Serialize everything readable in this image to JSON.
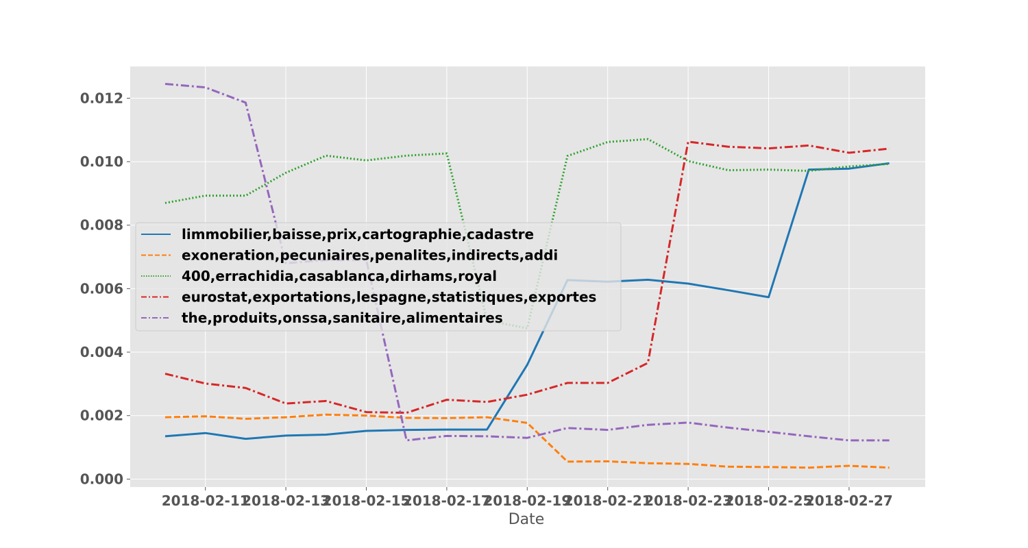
{
  "chart_data": {
    "type": "line",
    "title": "",
    "xlabel": "Date",
    "ylabel": "",
    "x": [
      "2018-02-10",
      "2018-02-11",
      "2018-02-12",
      "2018-02-13",
      "2018-02-14",
      "2018-02-15",
      "2018-02-16",
      "2018-02-17",
      "2018-02-18",
      "2018-02-19",
      "2018-02-20",
      "2018-02-21",
      "2018-02-22",
      "2018-02-23",
      "2018-02-24",
      "2018-02-25",
      "2018-02-26",
      "2018-02-27",
      "2018-02-28"
    ],
    "x_tick_labels": [
      "2018-02-11",
      "2018-02-13",
      "2018-02-15",
      "2018-02-17",
      "2018-02-19",
      "2018-02-21",
      "2018-02-23",
      "2018-02-25",
      "2018-02-27"
    ],
    "y_tick_labels": [
      "0.000",
      "0.002",
      "0.004",
      "0.006",
      "0.008",
      "0.010",
      "0.012"
    ],
    "ylim": [
      -0.00025,
      0.013
    ],
    "grid": true,
    "legend_position": "center-left",
    "series": [
      {
        "name": "limmobilier,baisse,prix,cartographie,cadastre",
        "color": "#1f77b4",
        "dash": "solid",
        "values": [
          0.00135,
          0.00145,
          0.00127,
          0.00137,
          0.0014,
          0.00152,
          0.00155,
          0.00156,
          0.00156,
          0.0036,
          0.00627,
          0.00622,
          0.00628,
          0.00616,
          0.00595,
          0.00573,
          0.00975,
          0.00978,
          0.00995
        ]
      },
      {
        "name": "exoneration,pecuniaires,penalites,indirects,addi",
        "color": "#ff7f0e",
        "dash": "dashed",
        "values": [
          0.00195,
          0.00198,
          0.0019,
          0.00195,
          0.00203,
          0.002,
          0.00193,
          0.00192,
          0.00195,
          0.00177,
          0.00055,
          0.00056,
          0.0005,
          0.00048,
          0.00039,
          0.00038,
          0.00036,
          0.00042,
          0.00036
        ]
      },
      {
        "name": "400,errachidia,casablanca,dirhams,royal",
        "color": "#2ca02c",
        "dash": "dotted",
        "values": [
          0.0087,
          0.00893,
          0.00893,
          0.00965,
          0.01019,
          0.01004,
          0.01019,
          0.01026,
          0.005,
          0.00475,
          0.01018,
          0.01062,
          0.01071,
          0.01002,
          0.00973,
          0.00975,
          0.00971,
          0.00985,
          0.00993
        ]
      },
      {
        "name": "eurostat,exportations,lespagne,statistiques,exportes",
        "color": "#d62728",
        "dash": "dashdot",
        "values": [
          0.00332,
          0.00301,
          0.00287,
          0.00238,
          0.00246,
          0.00211,
          0.00209,
          0.0025,
          0.00243,
          0.00266,
          0.00303,
          0.00303,
          0.00366,
          0.01063,
          0.01047,
          0.01042,
          0.01051,
          0.01028,
          0.01041
        ]
      },
      {
        "name": "the,produits,onssa,sanitaire,alimentaires",
        "color": "#9467bd",
        "dash": "dashdot",
        "values": [
          0.01245,
          0.01234,
          0.01186,
          0.0068,
          0.0069,
          0.0069,
          0.00122,
          0.00136,
          0.00135,
          0.0013,
          0.00161,
          0.00155,
          0.00171,
          0.00178,
          0.00162,
          0.00149,
          0.00135,
          0.00122,
          0.00122
        ]
      }
    ]
  }
}
